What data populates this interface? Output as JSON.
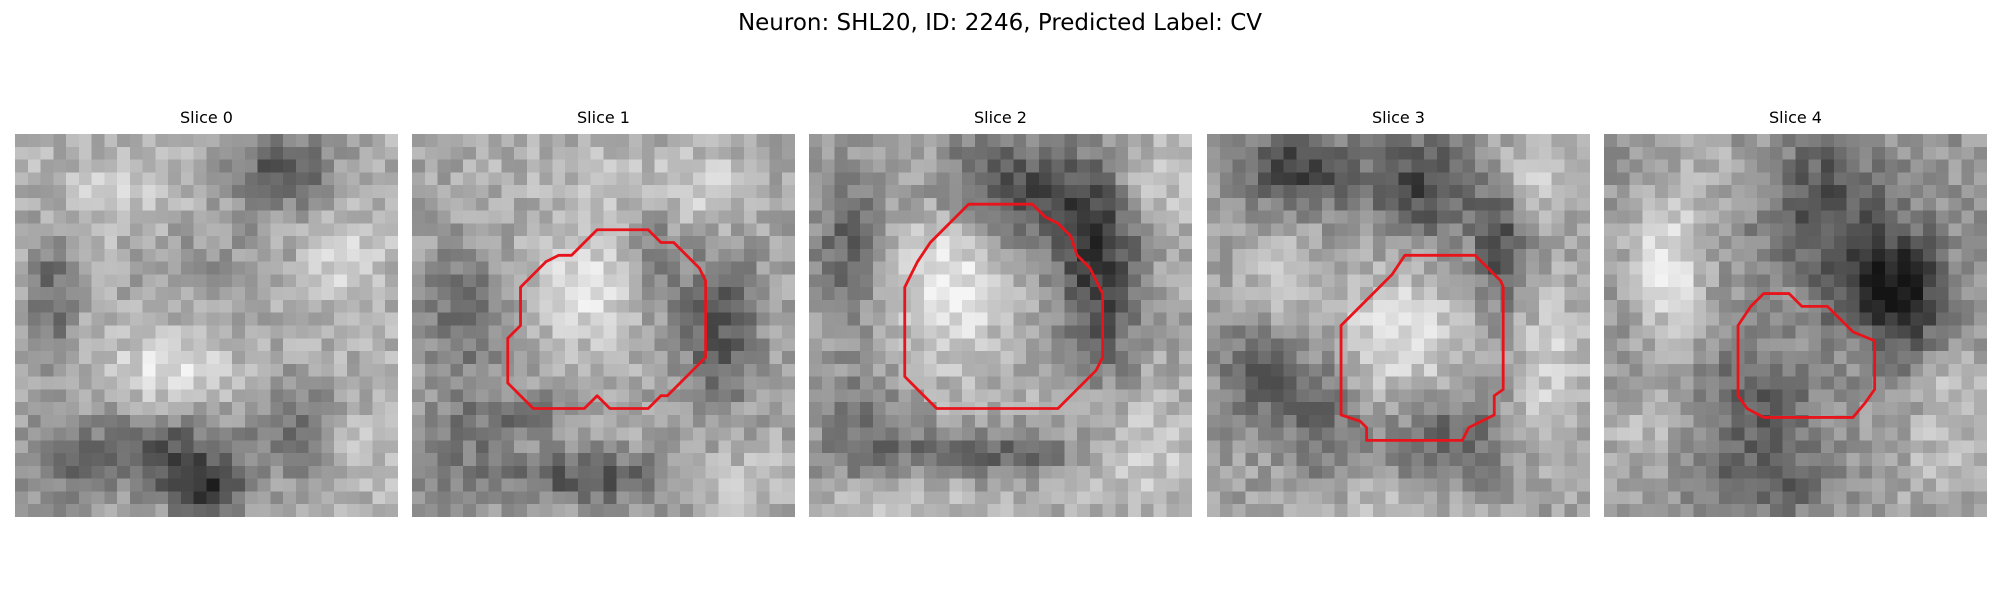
{
  "figure": {
    "title": "Neuron: SHL20, ID: 2246, Predicted Label: CV"
  },
  "panels": [
    {
      "title": "Slice 0",
      "has_contour": false
    },
    {
      "title": "Slice 1",
      "has_contour": true
    },
    {
      "title": "Slice 2",
      "has_contour": true
    },
    {
      "title": "Slice 3",
      "has_contour": true
    },
    {
      "title": "Slice 4",
      "has_contour": true
    }
  ],
  "colors": {
    "contour": "#e8141b",
    "background": "#ffffff"
  }
}
